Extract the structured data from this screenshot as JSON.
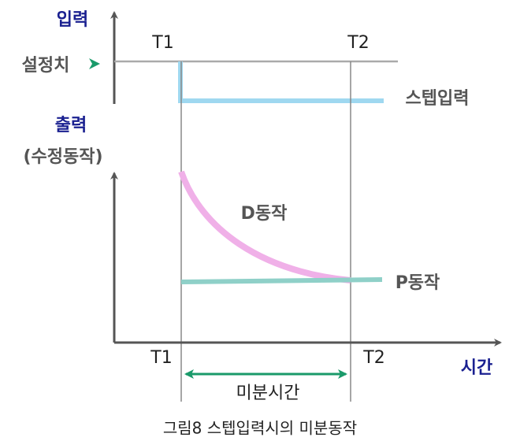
{
  "input_axis": {
    "title": "입력",
    "setpoint_label": "설정치",
    "step_label": "스텝입력",
    "t1": "T1",
    "t2": "T2"
  },
  "output_axis": {
    "title": "출력",
    "subtitle": "(수정동작)",
    "d_action": "D동작",
    "p_action": "P동작",
    "t1": "T1",
    "t2": "T2",
    "time_label": "시간",
    "derivative_time": "미분시간"
  },
  "caption": "그림8  스텝입력시의 미분동작"
}
